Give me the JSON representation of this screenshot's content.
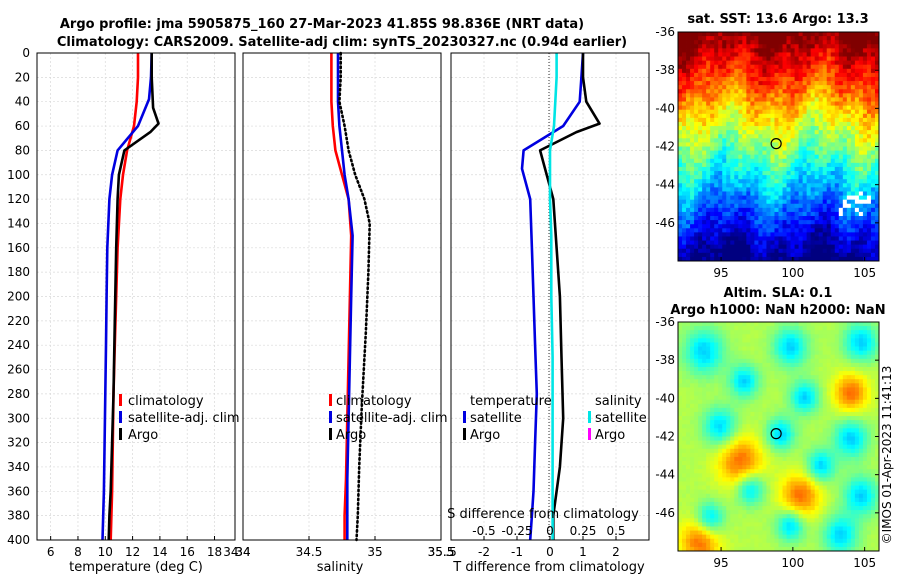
{
  "header": {
    "title_line1": "Argo profile: jma 5905875_160 27-Mar-2023 41.85S 98.836E (NRT data)",
    "title_line2": "Climatology: CARS2009. Satellite-adj clim: synTS_20230327.nc (0.94d earlier)"
  },
  "colors": {
    "climatology": "#ff0000",
    "satellite": "#0000e0",
    "argo": "#000000",
    "salinity_satellite": "#00e5e5",
    "salinity_argo": "#ff00ff",
    "grid": "#d9d9d9"
  },
  "depth_axis": {
    "ticks": [
      0,
      20,
      40,
      60,
      80,
      100,
      120,
      140,
      160,
      180,
      200,
      220,
      240,
      260,
      280,
      300,
      320,
      340,
      360,
      380,
      400
    ]
  },
  "chart_data": [
    {
      "id": "temperature",
      "type": "line",
      "xlabel": "temperature (deg C)",
      "ylabel": "depth",
      "xlim": [
        5,
        19.5
      ],
      "ylim": [
        0,
        400
      ],
      "xticks": [
        6,
        8,
        10,
        12,
        14,
        16,
        18
      ],
      "legend": {
        "position": "bottom-right",
        "entries": [
          "climatology",
          "satellite-adj. clim",
          "Argo"
        ]
      },
      "series": [
        {
          "name": "climatology",
          "color_key": "climatology",
          "style": "solid",
          "x": [
            12.4,
            12.4,
            12.3,
            12.1,
            11.6,
            11.3,
            11.1,
            10.9,
            10.8,
            10.7,
            10.6,
            10.55,
            10.5,
            10.45,
            10.4
          ],
          "depth": [
            0,
            20,
            40,
            60,
            80,
            100,
            120,
            160,
            200,
            240,
            280,
            320,
            360,
            380,
            400
          ]
        },
        {
          "name": "satellite-adj. clim",
          "color_key": "satellite",
          "style": "solid",
          "x": [
            13.4,
            13.35,
            13.2,
            12.4,
            10.9,
            10.5,
            10.3,
            10.15,
            10.1,
            10.05,
            10.0,
            9.95,
            9.9,
            9.85,
            9.8
          ],
          "depth": [
            0,
            20,
            38,
            60,
            80,
            100,
            120,
            160,
            200,
            240,
            280,
            320,
            360,
            380,
            400
          ]
        },
        {
          "name": "Argo",
          "color_key": "argo",
          "style": "solid",
          "x": [
            13.4,
            13.4,
            13.5,
            13.9,
            13.3,
            11.4,
            11.0,
            10.9,
            10.8,
            10.7,
            10.6,
            10.5,
            10.4,
            10.3,
            10.25
          ],
          "depth": [
            0,
            20,
            45,
            58,
            65,
            80,
            100,
            120,
            160,
            220,
            280,
            320,
            360,
            380,
            400
          ]
        }
      ]
    },
    {
      "id": "salinity",
      "type": "line",
      "xlabel": "salinity",
      "ylabel": "depth",
      "xlim": [
        34,
        35.5
      ],
      "ylim": [
        0,
        400
      ],
      "xticks": [
        34,
        34.5,
        35,
        35.5
      ],
      "legend": {
        "position": "bottom-right",
        "entries": [
          "climatology",
          "satellite-adj. clim",
          "Argo"
        ]
      },
      "series": [
        {
          "name": "climatology",
          "color_key": "climatology",
          "style": "solid",
          "x": [
            34.67,
            34.67,
            34.67,
            34.68,
            34.7,
            34.75,
            34.8,
            34.82,
            34.81,
            34.8,
            34.79,
            34.78,
            34.77,
            34.77
          ],
          "depth": [
            0,
            20,
            40,
            60,
            80,
            100,
            120,
            150,
            200,
            250,
            300,
            350,
            380,
            400
          ]
        },
        {
          "name": "satellite-adj. clim",
          "color_key": "satellite",
          "style": "solid",
          "x": [
            34.72,
            34.72,
            34.72,
            34.73,
            34.75,
            34.77,
            34.8,
            34.83,
            34.82,
            34.81,
            34.8,
            34.79,
            34.79,
            34.79
          ],
          "depth": [
            0,
            20,
            40,
            60,
            80,
            100,
            120,
            150,
            200,
            250,
            300,
            350,
            380,
            400
          ]
        },
        {
          "name": "Argo",
          "color_key": "argo",
          "style": "dotted",
          "x": [
            34.74,
            34.74,
            34.73,
            34.77,
            34.8,
            34.85,
            34.92,
            34.96,
            34.95,
            34.93,
            34.9,
            34.88,
            34.87,
            34.86
          ],
          "depth": [
            0,
            20,
            40,
            60,
            80,
            100,
            120,
            140,
            180,
            230,
            290,
            340,
            380,
            400
          ]
        }
      ]
    },
    {
      "id": "difference",
      "type": "line",
      "xlabel": "T difference from climatology",
      "xlabel_top": "S difference from climatology",
      "ylabel": "depth",
      "xlim": [
        -3,
        3
      ],
      "ylim": [
        0,
        400
      ],
      "xticks": [
        -2,
        -1,
        0,
        1,
        2
      ],
      "xtick_labels": [
        "-2",
        "-1",
        "0",
        "1",
        "2"
      ],
      "top_xticks": [
        -0.5,
        -0.25,
        0,
        0.25,
        0.5
      ],
      "top_xtick_labels": [
        "-0.5",
        "-0.25",
        "0",
        "0.25",
        "0.5"
      ],
      "top_xlim": [
        -0.75,
        0.75
      ],
      "legend": {
        "position": "bottom",
        "temperature_title": "temperature",
        "salinity_title": "salinity",
        "temperature_entries": [
          "satellite",
          "Argo"
        ],
        "salinity_entries": [
          "satellite",
          "Argo"
        ]
      },
      "series": [
        {
          "name": "T satellite",
          "axis": "bottom",
          "color_key": "satellite",
          "style": "solid",
          "x": [
            1.0,
            0.95,
            0.9,
            0.4,
            -0.8,
            -0.85,
            -0.6,
            -0.55,
            -0.5,
            -0.45,
            -0.4,
            -0.45,
            -0.5,
            -0.55,
            -0.6
          ],
          "depth": [
            0,
            20,
            40,
            60,
            80,
            95,
            120,
            160,
            200,
            240,
            280,
            320,
            360,
            380,
            400
          ]
        },
        {
          "name": "T Argo",
          "axis": "bottom",
          "color_key": "argo",
          "style": "solid",
          "x": [
            1.0,
            1.0,
            1.1,
            1.5,
            0.8,
            -0.3,
            -0.1,
            0.1,
            0.2,
            0.3,
            0.35,
            0.4,
            0.3,
            0.1,
            0.1
          ],
          "depth": [
            0,
            20,
            40,
            58,
            65,
            80,
            100,
            120,
            160,
            200,
            250,
            300,
            340,
            380,
            400
          ]
        },
        {
          "name": "S satellite",
          "axis": "top",
          "color_key": "salinity_satellite",
          "style": "solid",
          "x": [
            0.05,
            0.05,
            0.04,
            0.03,
            0.0,
            0.0,
            0.0,
            0.01,
            0.01,
            0.02,
            0.02,
            0.02,
            0.02,
            0.02
          ],
          "depth": [
            0,
            20,
            40,
            60,
            80,
            100,
            120,
            150,
            200,
            250,
            300,
            350,
            380,
            400
          ]
        }
      ],
      "zero_line": true
    }
  ],
  "sst_map": {
    "title": "sat. SST: 13.6 Argo: 13.3",
    "xticks": [
      95,
      100,
      105
    ],
    "yticks": [
      -36,
      -38,
      -40,
      -42,
      -44,
      -46
    ],
    "lon_range": [
      92,
      106
    ],
    "lat_range": [
      -48,
      -36
    ],
    "argo_position": {
      "lon": 98.836,
      "lat": -41.85
    }
  },
  "sla_map": {
    "title_line1": "Altim. SLA: 0.1",
    "title_line2": "Argo h1000: NaN h2000: NaN",
    "xticks": [
      95,
      100,
      105
    ],
    "yticks": [
      -36,
      -38,
      -40,
      -42,
      -44,
      -46
    ],
    "lon_range": [
      92,
      106
    ],
    "lat_range": [
      -48,
      -36
    ],
    "argo_position": {
      "lon": 98.836,
      "lat": -41.85
    }
  },
  "footer": {
    "credit": "©IMOS 01-Apr-2023 11:41:13"
  }
}
